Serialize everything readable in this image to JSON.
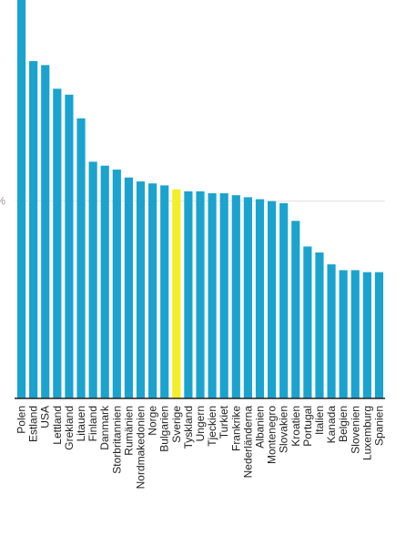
{
  "chart_data": {
    "type": "bar",
    "title": "",
    "xlabel": "",
    "ylabel": "",
    "ylim": [
      0,
      2.02
    ],
    "yticks": [
      {
        "value": 1,
        "label": "%"
      }
    ],
    "grid": "horizontal",
    "categories": [
      "Polen",
      "Estland",
      "USA",
      "Lettland",
      "Grekland",
      "Litauen",
      "Finland",
      "Danmark",
      "Storbritannien",
      "Rumänien",
      "Nordmakedonien",
      "Norge",
      "Bulgarien",
      "Sverige",
      "Tyskland",
      "Ungern",
      "Tjeckien",
      "Turkiet",
      "Frankrike",
      "Nederländerna",
      "Albanien",
      "Montenegro",
      "Slovakien",
      "Kroatien",
      "Portugal",
      "Italien",
      "Kanada",
      "Belgien",
      "Slovenien",
      "Luxemburg",
      "Spanien"
    ],
    "values": [
      2.02,
      1.71,
      1.69,
      1.57,
      1.54,
      1.42,
      1.2,
      1.18,
      1.16,
      1.12,
      1.1,
      1.09,
      1.08,
      1.06,
      1.05,
      1.05,
      1.04,
      1.04,
      1.03,
      1.02,
      1.01,
      1.0,
      0.99,
      0.9,
      0.77,
      0.74,
      0.68,
      0.65,
      0.65,
      0.64,
      0.64
    ],
    "highlight": "Sverige",
    "colors": {
      "bar": "#1ba3cf",
      "highlight": "#f2ef2a",
      "axis": "#222222",
      "grid": "#e0e0e0"
    }
  }
}
